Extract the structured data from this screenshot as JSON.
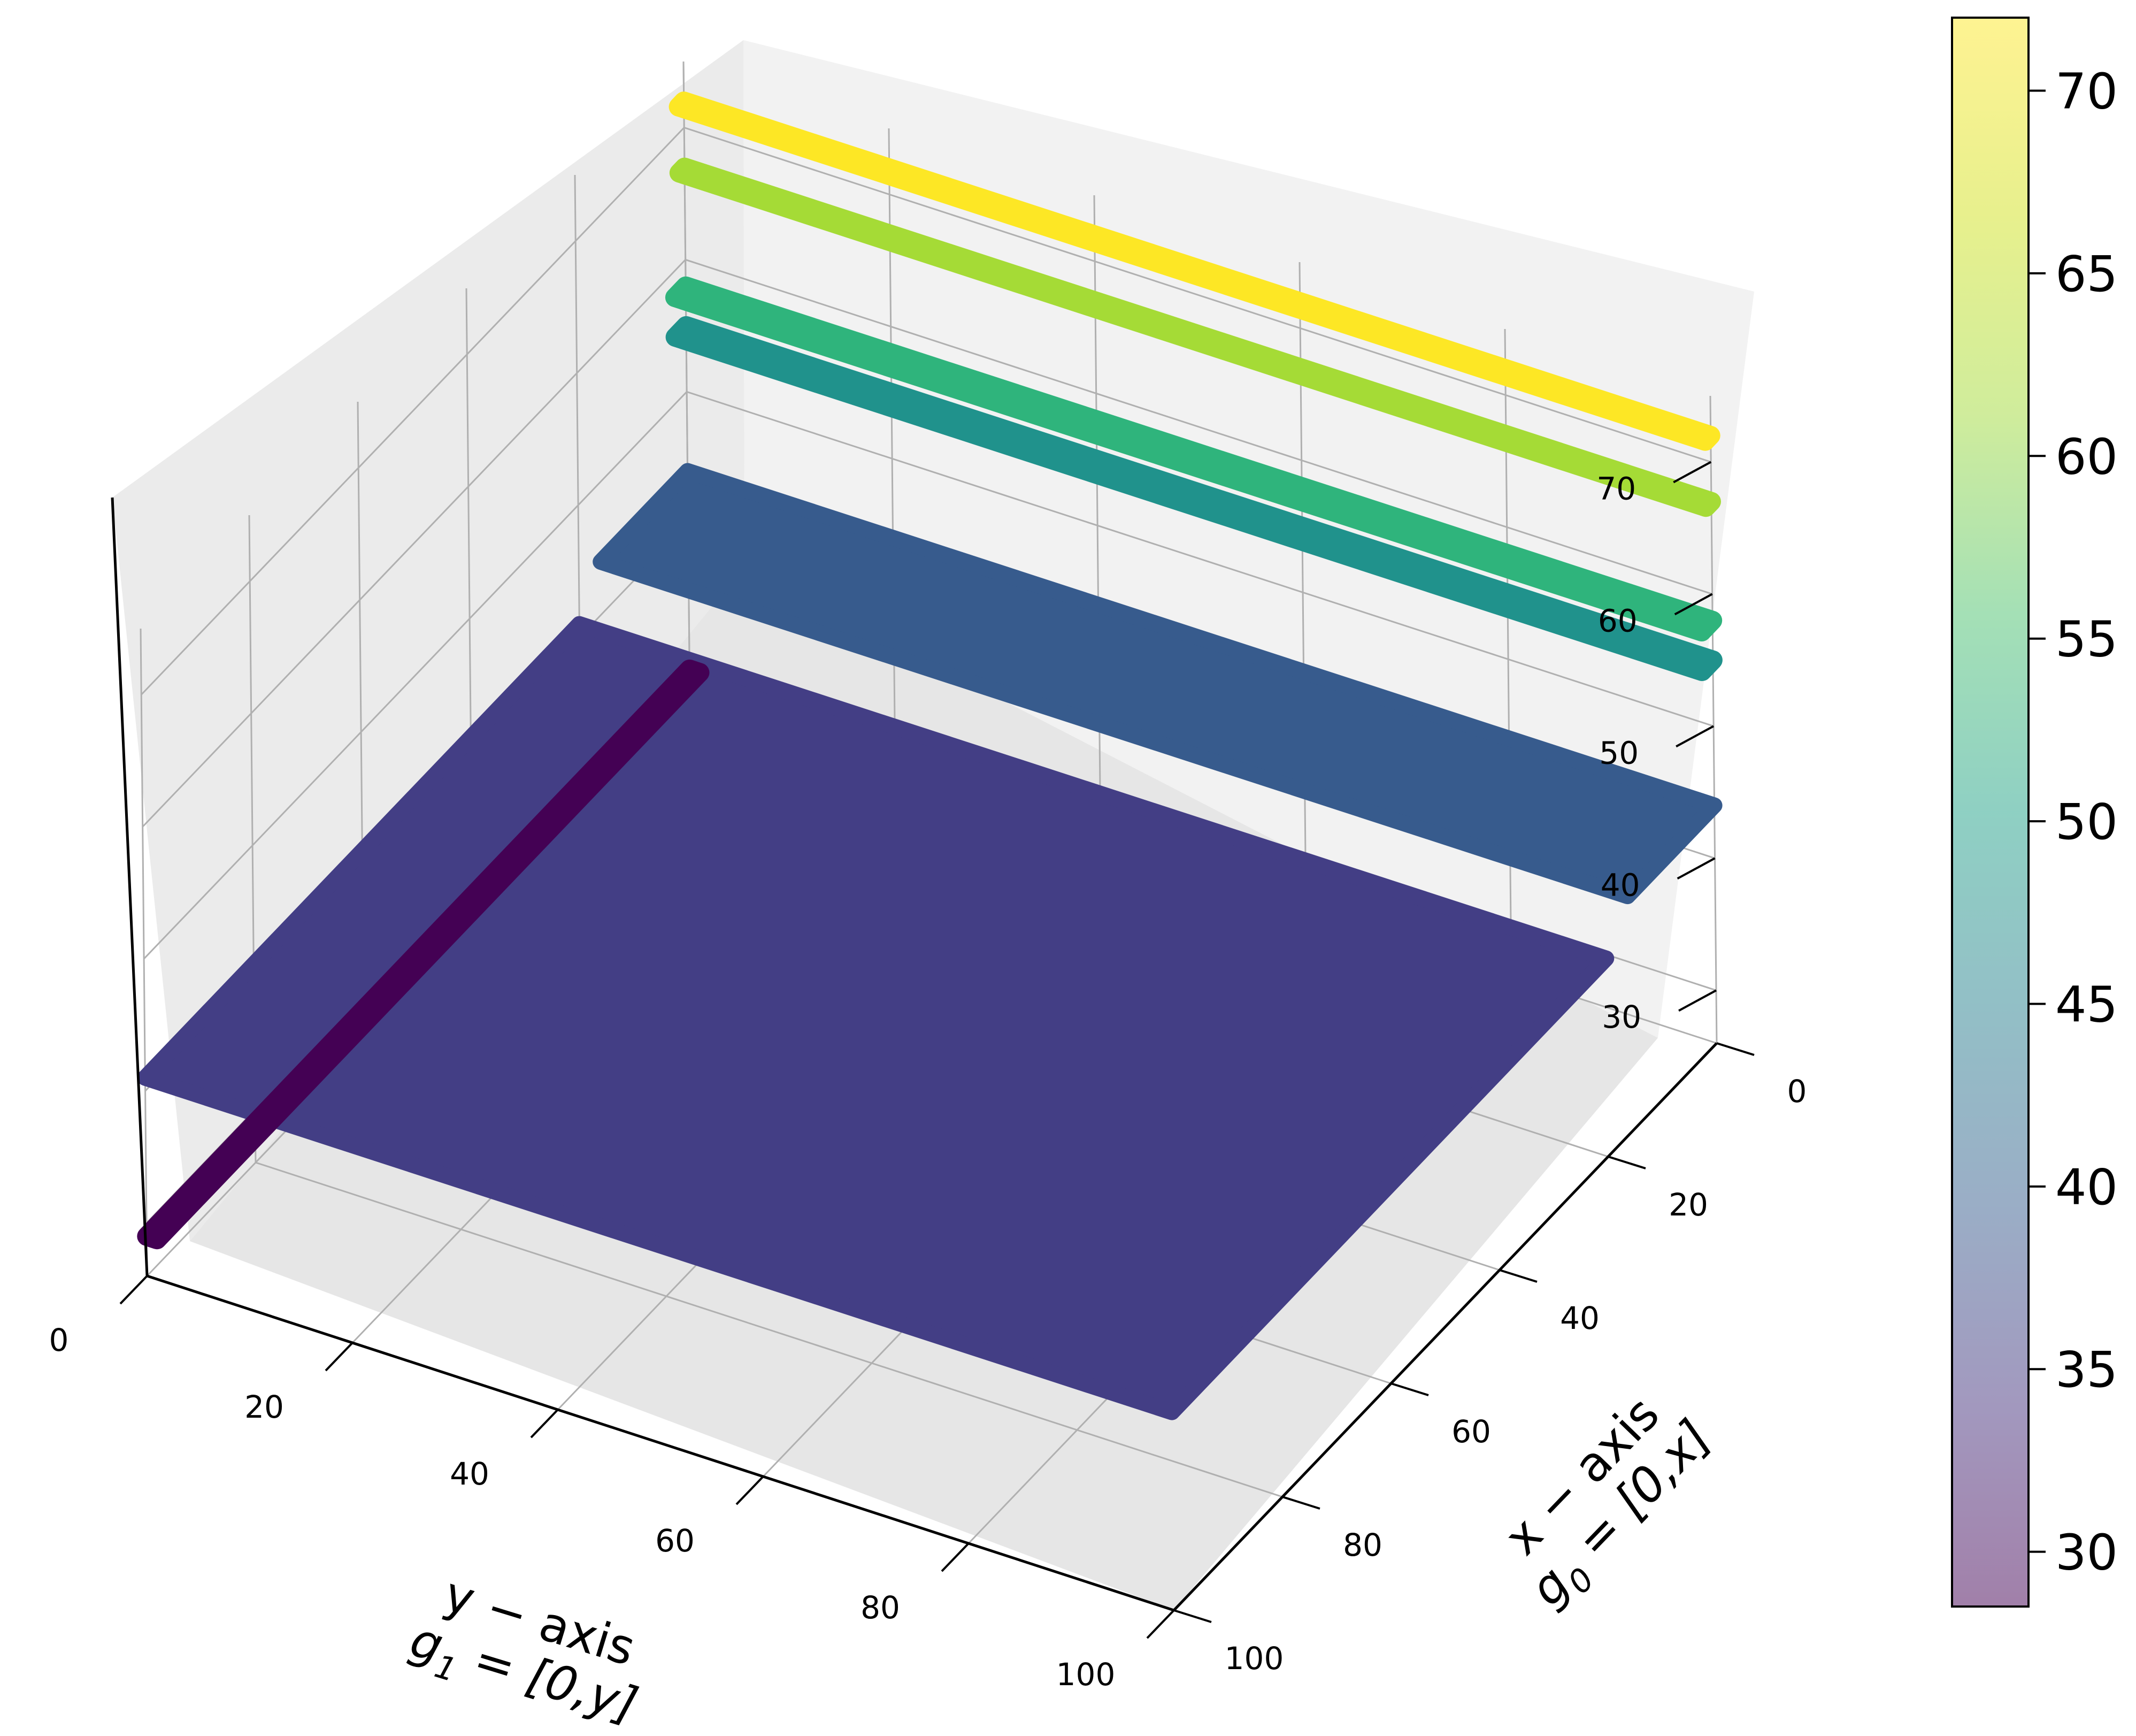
{
  "chart_data": {
    "type": "scatter",
    "projection": "3d",
    "x_axis": {
      "label_line1": "x − axis",
      "label_line2_symbol": "g",
      "label_line2_sub": "0",
      "label_line2_rest": " = [0,x]",
      "ticks": [
        0,
        20,
        40,
        60,
        80,
        100
      ],
      "range": [
        0,
        100
      ]
    },
    "y_axis": {
      "label_line1": "y − axis",
      "label_line2_symbol": "g",
      "label_line2_sub": "1",
      "label_line2_rest": " = [0,y]",
      "ticks": [
        0,
        20,
        40,
        60,
        80,
        100
      ],
      "range": [
        0,
        100
      ]
    },
    "z_axis": {
      "ticks": [
        30,
        40,
        50,
        60,
        70
      ],
      "range": [
        26,
        75
      ]
    },
    "colorbar": {
      "colormap": "viridis",
      "range": [
        28.5,
        72
      ],
      "ticks": [
        30,
        35,
        40,
        45,
        50,
        55,
        60,
        65,
        70
      ]
    },
    "grid": true,
    "series": [
      {
        "kind": "line",
        "x_range": [
          0,
          1
        ],
        "y_range": [
          0,
          100
        ],
        "z": 72,
        "color": "#fde725"
      },
      {
        "kind": "line",
        "x_range": [
          0,
          1
        ],
        "y_range": [
          0,
          100
        ],
        "z": 67,
        "color": "#a5db36"
      },
      {
        "kind": "line",
        "x_range": [
          0,
          2
        ],
        "y_range": [
          0,
          100
        ],
        "z": 58,
        "color": "#2fb47c"
      },
      {
        "kind": "line",
        "x_range": [
          0,
          2
        ],
        "y_range": [
          0,
          100
        ],
        "z": 55,
        "color": "#20928c"
      },
      {
        "kind": "band",
        "x_range": [
          0,
          16
        ],
        "y_range": [
          0,
          100
        ],
        "z": 44,
        "color": "#375b8d"
      },
      {
        "kind": "plane",
        "x_range": [
          20,
          100
        ],
        "y_range": [
          0,
          100
        ],
        "z": 41,
        "color": "#433e85"
      },
      {
        "kind": "line",
        "x_range": [
          0,
          100
        ],
        "y_range": [
          0,
          1
        ],
        "z": 29,
        "color": "#440154"
      }
    ]
  }
}
